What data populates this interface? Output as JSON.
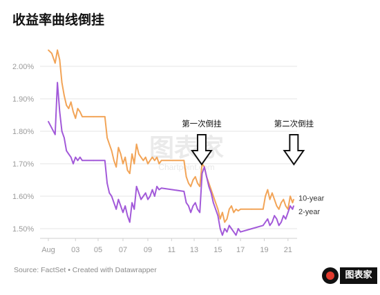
{
  "chart_data": {
    "type": "line",
    "title": "收益率曲线倒挂",
    "source": "Source: FactSet • Created with Datawrapper",
    "x_ticks": [
      "Aug",
      "03",
      "05",
      "07",
      "09",
      "11",
      "13",
      "15",
      "17",
      "19",
      "21"
    ],
    "y_ticks": [
      "2.00%",
      "1.90%",
      "1.80%",
      "1.70%",
      "1.60%",
      "1.50%"
    ],
    "ylim": [
      1.46,
      2.07
    ],
    "grid": true,
    "annotations": [
      {
        "label": "第一次倒挂",
        "x": 14.3
      },
      {
        "label": "第二次倒挂",
        "x": 21.6
      }
    ],
    "series": [
      {
        "name": "10-year",
        "color": "#f2a457",
        "x": [
          0,
          0.3,
          0.6,
          0.8,
          1.0,
          1.2,
          1.4,
          1.6,
          1.8,
          2.0,
          2.2,
          2.4,
          2.6,
          2.8,
          3.0,
          4.0,
          5.0,
          5.2,
          5.4,
          5.6,
          5.8,
          6.0,
          6.2,
          6.4,
          6.6,
          6.8,
          7.0,
          7.2,
          7.4,
          7.6,
          7.8,
          8.0,
          8.2,
          8.4,
          8.6,
          8.8,
          9.0,
          9.2,
          9.4,
          9.6,
          9.8,
          10.0,
          11.0,
          12.0,
          12.2,
          12.4,
          12.6,
          12.8,
          13.0,
          13.2,
          13.4,
          13.6,
          13.8,
          14.0,
          14.2,
          14.4,
          14.6,
          14.8,
          15.0,
          15.2,
          15.4,
          15.6,
          15.8,
          16.0,
          16.2,
          16.4,
          16.6,
          16.8,
          17.0,
          18.0,
          19.0,
          19.2,
          19.4,
          19.6,
          19.8,
          20.0,
          20.2,
          20.4,
          20.6,
          20.8,
          21.0,
          21.2,
          21.4,
          21.6,
          21.7
        ],
        "values": [
          2.05,
          2.04,
          2.01,
          2.05,
          2.02,
          1.95,
          1.91,
          1.88,
          1.87,
          1.89,
          1.86,
          1.84,
          1.87,
          1.86,
          1.845,
          1.845,
          1.845,
          1.78,
          1.76,
          1.74,
          1.71,
          1.69,
          1.75,
          1.73,
          1.7,
          1.72,
          1.68,
          1.67,
          1.73,
          1.7,
          1.76,
          1.73,
          1.72,
          1.71,
          1.72,
          1.7,
          1.71,
          1.72,
          1.71,
          1.72,
          1.7,
          1.71,
          1.71,
          1.71,
          1.66,
          1.64,
          1.63,
          1.65,
          1.66,
          1.64,
          1.63,
          1.7,
          1.69,
          1.66,
          1.64,
          1.62,
          1.6,
          1.58,
          1.56,
          1.53,
          1.55,
          1.52,
          1.53,
          1.56,
          1.57,
          1.55,
          1.56,
          1.555,
          1.56,
          1.56,
          1.56,
          1.6,
          1.62,
          1.59,
          1.61,
          1.59,
          1.57,
          1.56,
          1.58,
          1.59,
          1.57,
          1.56,
          1.6,
          1.58,
          1.59
        ]
      },
      {
        "name": "2-year",
        "color": "#a259d9",
        "x": [
          0,
          0.3,
          0.6,
          0.8,
          1.0,
          1.2,
          1.4,
          1.6,
          1.8,
          2.0,
          2.2,
          2.4,
          2.6,
          2.8,
          3.0,
          4.0,
          5.0,
          5.2,
          5.4,
          5.6,
          5.8,
          6.0,
          6.2,
          6.4,
          6.6,
          6.8,
          7.0,
          7.2,
          7.4,
          7.6,
          7.8,
          8.0,
          8.2,
          8.4,
          8.6,
          8.8,
          9.0,
          9.2,
          9.4,
          9.6,
          9.8,
          10.0,
          11.0,
          12.0,
          12.2,
          12.4,
          12.6,
          12.8,
          13.0,
          13.2,
          13.4,
          13.6,
          13.8,
          14.0,
          14.2,
          14.4,
          14.6,
          14.8,
          15.0,
          15.2,
          15.4,
          15.6,
          15.8,
          16.0,
          16.2,
          16.4,
          16.6,
          16.8,
          17.0,
          18.0,
          19.0,
          19.2,
          19.4,
          19.6,
          19.8,
          20.0,
          20.2,
          20.4,
          20.6,
          20.8,
          21.0,
          21.2,
          21.4,
          21.6,
          21.7
        ],
        "values": [
          1.83,
          1.81,
          1.79,
          1.95,
          1.86,
          1.8,
          1.78,
          1.74,
          1.73,
          1.72,
          1.7,
          1.72,
          1.71,
          1.72,
          1.71,
          1.71,
          1.71,
          1.64,
          1.61,
          1.6,
          1.58,
          1.56,
          1.59,
          1.57,
          1.55,
          1.57,
          1.54,
          1.52,
          1.58,
          1.56,
          1.63,
          1.61,
          1.59,
          1.6,
          1.61,
          1.59,
          1.6,
          1.62,
          1.6,
          1.63,
          1.62,
          1.625,
          1.62,
          1.615,
          1.58,
          1.57,
          1.55,
          1.57,
          1.58,
          1.56,
          1.55,
          1.67,
          1.69,
          1.66,
          1.63,
          1.61,
          1.58,
          1.56,
          1.54,
          1.5,
          1.48,
          1.5,
          1.49,
          1.51,
          1.5,
          1.49,
          1.48,
          1.5,
          1.49,
          1.5,
          1.51,
          1.52,
          1.53,
          1.51,
          1.52,
          1.54,
          1.53,
          1.51,
          1.52,
          1.54,
          1.53,
          1.55,
          1.57,
          1.56,
          1.57
        ]
      }
    ]
  },
  "watermark": {
    "text": "图表家",
    "sub": "Chartpoint.com"
  },
  "logo": {
    "text": "图表家"
  }
}
